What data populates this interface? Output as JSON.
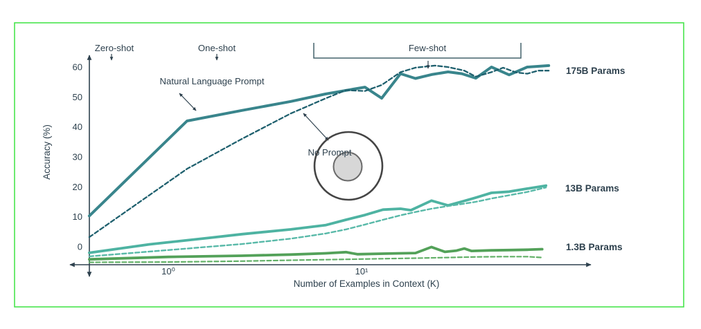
{
  "figure": {
    "border_color": "#48e44c",
    "background_color": "#ffffff",
    "ink_color": "#2e414e"
  },
  "chart_data": {
    "type": "line",
    "title": "",
    "xlabel": "Number of Examples in Context (K)",
    "ylabel": "Accuracy (%)",
    "x_scale": "log",
    "x_ticks": [
      {
        "label": "10⁰",
        "k": 1
      },
      {
        "label": "10¹",
        "k": 10
      }
    ],
    "y_ticks": [
      0,
      10,
      20,
      30,
      40,
      50,
      60
    ],
    "ylim": [
      -8,
      65
    ],
    "xlim_k": [
      0.39,
      100
    ],
    "grid": false,
    "legend_position": "right-of-lines",
    "annotations": {
      "zero_shot": "Zero-shot",
      "one_shot": "One-shot",
      "few_shot": "Few-shot",
      "natural_language_prompt": "Natural Language Prompt",
      "no_prompt": "No Prompt"
    },
    "legend": [
      {
        "id": "175b",
        "label": "175B Params",
        "color": "#1b3f45"
      },
      {
        "id": "13b",
        "label": "13B Params",
        "color": "#44ab99"
      },
      {
        "id": "1-3b",
        "label": "1.3B Params",
        "color": "#4b9e51"
      }
    ],
    "colors": {
      "circle_outer_stroke": "#454545",
      "circle_inner_fill": "#d7d7d7",
      "circle_inner_stroke": "#6a6a6a"
    },
    "series": [
      {
        "id": "175b-natural-language-prompt",
        "name": "175B Params — Natural Language Prompt",
        "style": "solid",
        "color": "#39858c",
        "width": 4,
        "points": [
          [
            0.39,
            10.3
          ],
          [
            1.25,
            42
          ],
          [
            2.4,
            45.5
          ],
          [
            4.3,
            48.5
          ],
          [
            6.5,
            51
          ],
          [
            8.3,
            52.2
          ],
          [
            10.4,
            53.3
          ],
          [
            12.7,
            49.6
          ],
          [
            15.9,
            57.8
          ],
          [
            19,
            56.2
          ],
          [
            23,
            57.5
          ],
          [
            28,
            58.4
          ],
          [
            33,
            57.8
          ],
          [
            39,
            56.3
          ],
          [
            47,
            60
          ],
          [
            58,
            57.4
          ],
          [
            72,
            60
          ],
          [
            93,
            60.5
          ]
        ]
      },
      {
        "id": "175b-no-prompt",
        "name": "175B Params — No Prompt",
        "style": "dashed",
        "color": "#1f606e",
        "width": 2.3,
        "points": [
          [
            0.39,
            3.2
          ],
          [
            1.25,
            26
          ],
          [
            2.4,
            36
          ],
          [
            4.3,
            44.5
          ],
          [
            6.5,
            49.5
          ],
          [
            8.3,
            52.3
          ],
          [
            10.4,
            52
          ],
          [
            12.7,
            54
          ],
          [
            15.9,
            58.3
          ],
          [
            19,
            59.8
          ],
          [
            24,
            60.5
          ],
          [
            28,
            60
          ],
          [
            34,
            58.8
          ],
          [
            39,
            56.8
          ],
          [
            47,
            58.3
          ],
          [
            54,
            59.8
          ],
          [
            63,
            58.2
          ],
          [
            72,
            57.8
          ],
          [
            82,
            58.8
          ],
          [
            93,
            58.8
          ]
        ]
      },
      {
        "id": "13b-natural-language-prompt",
        "name": "13B Params — Natural Language Prompt",
        "style": "solid",
        "color": "#4eb3a2",
        "width": 3.8,
        "points": [
          [
            0.39,
            -2
          ],
          [
            0.8,
            0.8
          ],
          [
            1.6,
            2.9
          ],
          [
            2.4,
            4.2
          ],
          [
            4.3,
            5.8
          ],
          [
            6.5,
            7.2
          ],
          [
            8.3,
            9
          ],
          [
            10.4,
            10.6
          ],
          [
            12.9,
            12.4
          ],
          [
            15.9,
            12.7
          ],
          [
            18,
            12.2
          ],
          [
            23,
            15.4
          ],
          [
            28,
            13.8
          ],
          [
            34,
            15.3
          ],
          [
            39,
            16.4
          ],
          [
            47,
            18
          ],
          [
            58,
            18.4
          ],
          [
            72,
            19.4
          ],
          [
            90,
            20.4
          ]
        ]
      },
      {
        "id": "13b-no-prompt",
        "name": "13B Params — No Prompt",
        "style": "dashed",
        "color": "#58b9a8",
        "width": 2.4,
        "points": [
          [
            0.39,
            -3.2
          ],
          [
            1,
            -1.1
          ],
          [
            2.4,
            0.9
          ],
          [
            4.3,
            2.7
          ],
          [
            6.5,
            4.4
          ],
          [
            8.3,
            5.8
          ],
          [
            10.4,
            7.4
          ],
          [
            12.9,
            9
          ],
          [
            15.9,
            10.5
          ],
          [
            19,
            11.6
          ],
          [
            23,
            12.7
          ],
          [
            28,
            13.6
          ],
          [
            34,
            14.4
          ],
          [
            39,
            15
          ],
          [
            47,
            16.1
          ],
          [
            58,
            17.2
          ],
          [
            72,
            18.3
          ],
          [
            90,
            19.8
          ]
        ]
      },
      {
        "id": "1-3b-natural-language-prompt",
        "name": "1.3B Params — Natural Language Prompt",
        "style": "solid",
        "color": "#53a159",
        "width": 3.8,
        "points": [
          [
            0.39,
            -4.2
          ],
          [
            1,
            -3.4
          ],
          [
            2.4,
            -3
          ],
          [
            4.3,
            -2.6
          ],
          [
            6.5,
            -2.2
          ],
          [
            8.3,
            -1.8
          ],
          [
            9.5,
            -2.5
          ],
          [
            12.9,
            -2.3
          ],
          [
            15.9,
            -2.2
          ],
          [
            19,
            -2.1
          ],
          [
            23,
            -0.1
          ],
          [
            27,
            -1.7
          ],
          [
            31,
            -1.3
          ],
          [
            34,
            -0.6
          ],
          [
            37,
            -1.4
          ],
          [
            47,
            -1.2
          ],
          [
            58,
            -1.1
          ],
          [
            72,
            -1
          ],
          [
            86,
            -0.8
          ]
        ]
      },
      {
        "id": "1-3b-no-prompt",
        "name": "1.3B Params — No Prompt",
        "style": "dashed",
        "color": "#62b067",
        "width": 2.2,
        "points": [
          [
            0.39,
            -5.2
          ],
          [
            1,
            -5.1
          ],
          [
            2.4,
            -4.8
          ],
          [
            4.3,
            -4.5
          ],
          [
            8.3,
            -4.2
          ],
          [
            12.9,
            -4
          ],
          [
            19,
            -3.8
          ],
          [
            28,
            -3.6
          ],
          [
            39,
            -3.4
          ],
          [
            54,
            -3.3
          ],
          [
            72,
            -3.3
          ],
          [
            86,
            -3.6
          ]
        ]
      }
    ]
  }
}
